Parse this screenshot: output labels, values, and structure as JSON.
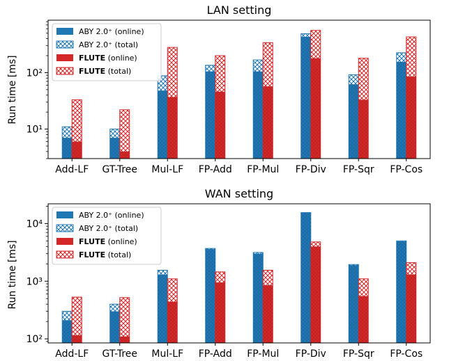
{
  "colors": {
    "aby": "#1f77b4",
    "flute": "#d62728"
  },
  "legend_labels": {
    "aby_online": "ABY 2.0⁺ (online)",
    "aby_total": "ABY 2.0⁺ (total)",
    "flute_online_bold": "FLUTE",
    "flute_online_rest": " (online)",
    "flute_total_bold": "FLUTE",
    "flute_total_rest": " (total)"
  },
  "chart_data": [
    {
      "type": "bar",
      "title": "LAN setting",
      "ylabel": "Run time [ms]",
      "yscale": "log",
      "ylim": [
        3,
        850
      ],
      "yticks": [
        10,
        100
      ],
      "ytick_labels": [
        "10¹",
        "10²"
      ],
      "legend_position": "upper-left",
      "categories": [
        "Add-LF",
        "GT-Tree",
        "Mul-LF",
        "FP-Add",
        "FP-Mul",
        "FP-Div",
        "FP-Sqr",
        "FP-Cos"
      ],
      "series": [
        {
          "name": "ABY 2.0⁺ (online)",
          "values": [
            7,
            7,
            48,
            105,
            105,
            430,
            62,
            155
          ]
        },
        {
          "name": "ABY 2.0⁺ (total)",
          "values": [
            11,
            10,
            88,
            135,
            168,
            490,
            92,
            225
          ]
        },
        {
          "name": "FLUTE (online)",
          "values": [
            6,
            4,
            37,
            46,
            57,
            180,
            33,
            85
          ]
        },
        {
          "name": "FLUTE (total)",
          "values": [
            33,
            22,
            280,
            200,
            340,
            560,
            180,
            430
          ]
        }
      ]
    },
    {
      "type": "bar",
      "title": "WAN setting",
      "ylabel": "Run time [ms]",
      "yscale": "log",
      "ylim": [
        85,
        22000
      ],
      "yticks": [
        100,
        1000,
        10000
      ],
      "ytick_labels": [
        "10²",
        "10³",
        "10⁴"
      ],
      "legend_position": "upper-left",
      "categories": [
        "Add-LF",
        "GT-Tree",
        "Mul-LF",
        "FP-Add",
        "FP-Mul",
        "FP-Div",
        "FP-Sqr",
        "FP-Cos"
      ],
      "series": [
        {
          "name": "ABY 2.0⁺ (online)",
          "values": [
            210,
            300,
            1300,
            3600,
            3000,
            15500,
            1900,
            4900
          ]
        },
        {
          "name": "ABY 2.0⁺ (total)",
          "values": [
            300,
            400,
            1550,
            3700,
            3150,
            15500,
            1950,
            5000
          ]
        },
        {
          "name": "FLUTE (online)",
          "values": [
            115,
            110,
            440,
            950,
            850,
            4000,
            550,
            1300
          ]
        },
        {
          "name": "FLUTE (total)",
          "values": [
            530,
            520,
            1100,
            1450,
            1550,
            4800,
            1100,
            2100
          ]
        }
      ]
    }
  ]
}
